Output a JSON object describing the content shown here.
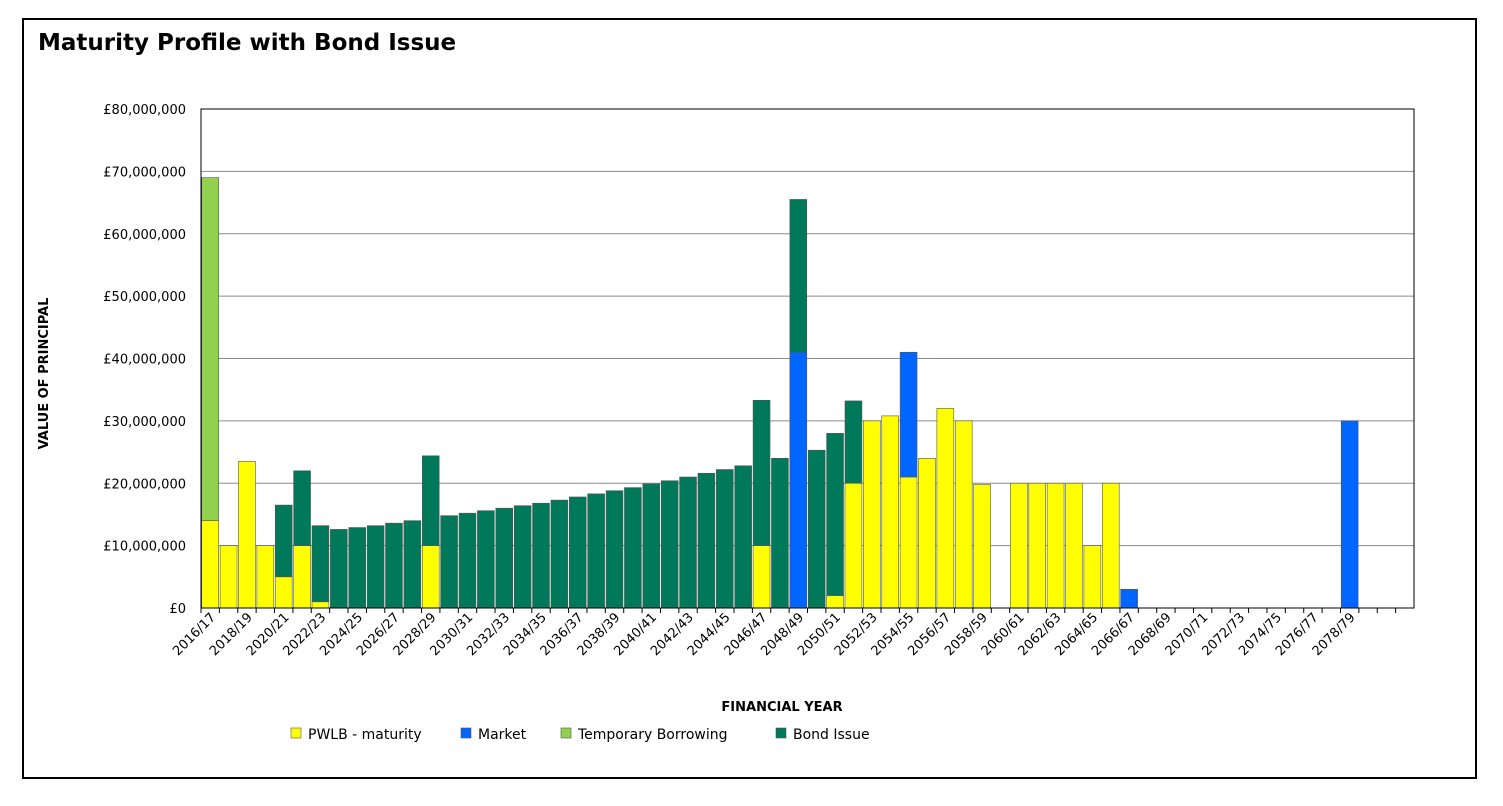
{
  "chart_data": {
    "type": "bar",
    "stacked": true,
    "title": "Maturity Profile with Bond Issue",
    "xlabel": "FINANCIAL YEAR",
    "ylabel": "VALUE OF PRINCIPAL",
    "ylim": [
      0,
      80000000
    ],
    "yticks": [
      0,
      10000000,
      20000000,
      30000000,
      40000000,
      50000000,
      60000000,
      70000000,
      80000000
    ],
    "ytick_labels": [
      "£0",
      "£10,000,000",
      "£20,000,000",
      "£30,000,000",
      "£40,000,000",
      "£50,000,000",
      "£60,000,000",
      "£70,000,000",
      "£80,000,000"
    ],
    "grid": true,
    "legend_position": "bottom",
    "categories": [
      "2016/17",
      "2017/18",
      "2018/19",
      "2019/20",
      "2020/21",
      "2021/22",
      "2022/23",
      "2023/24",
      "2024/25",
      "2025/26",
      "2026/27",
      "2027/28",
      "2028/29",
      "2029/30",
      "2030/31",
      "2031/32",
      "2032/33",
      "2033/34",
      "2034/35",
      "2035/36",
      "2036/37",
      "2037/38",
      "2038/39",
      "2039/40",
      "2040/41",
      "2041/42",
      "2042/43",
      "2043/44",
      "2044/45",
      "2045/46",
      "2046/47",
      "2047/48",
      "2048/49",
      "2049/50",
      "2050/51",
      "2051/52",
      "2052/53",
      "2053/54",
      "2054/55",
      "2055/56",
      "2056/57",
      "2057/58",
      "2058/59",
      "2059/60",
      "2060/61",
      "2061/62",
      "2062/63",
      "2063/64",
      "2064/65",
      "2065/66",
      "2066/67",
      "2067/68",
      "2068/69",
      "2069/70",
      "2070/71",
      "2071/72",
      "2072/73",
      "2073/74",
      "2074/75",
      "2075/76",
      "2076/77",
      "2077/78",
      "2078/79",
      "2079/80",
      "2080/81",
      "2081/82"
    ],
    "shown_tick_labels": [
      "2016/17",
      "2018/19",
      "2020/21",
      "2022/23",
      "2024/25",
      "2026/27",
      "2028/29",
      "2030/31",
      "2032/33",
      "2034/35",
      "2036/37",
      "2038/39",
      "2040/41",
      "2042/43",
      "2044/45",
      "2046/47",
      "2048/49",
      "2050/51",
      "2052/53",
      "2054/55",
      "2056/57",
      "2058/59",
      "2060/61",
      "2062/63",
      "2064/65",
      "2066/67",
      "2068/69",
      "2070/71",
      "2072/73",
      "2074/75",
      "2076/77",
      "2078/79"
    ],
    "series": [
      {
        "name": "PWLB - maturity",
        "color": "#FFFF00",
        "values": [
          14000000,
          10000000,
          23500000,
          10000000,
          5000000,
          10000000,
          1000000,
          0,
          0,
          0,
          0,
          0,
          10000000,
          0,
          0,
          0,
          0,
          0,
          0,
          0,
          0,
          0,
          0,
          0,
          0,
          0,
          0,
          0,
          0,
          0,
          10000000,
          0,
          0,
          0,
          2000000,
          20000000,
          30000000,
          30800000,
          21000000,
          24000000,
          32000000,
          30000000,
          19800000,
          0,
          20000000,
          20000000,
          20000000,
          20000000,
          10000000,
          20000000,
          0,
          0,
          0,
          0,
          0,
          0,
          0,
          0,
          0,
          0,
          0,
          0,
          0,
          0,
          0,
          0
        ]
      },
      {
        "name": "Market",
        "color": "#0066FF",
        "values": [
          0,
          0,
          0,
          0,
          0,
          0,
          0,
          0,
          0,
          0,
          0,
          0,
          0,
          0,
          0,
          0,
          0,
          0,
          0,
          0,
          0,
          0,
          0,
          0,
          0,
          0,
          0,
          0,
          0,
          0,
          0,
          0,
          41000000,
          0,
          0,
          0,
          0,
          0,
          20000000,
          0,
          0,
          0,
          0,
          0,
          0,
          0,
          0,
          0,
          0,
          0,
          3000000,
          0,
          0,
          0,
          0,
          0,
          0,
          0,
          0,
          0,
          0,
          0,
          30000000,
          0,
          0,
          0
        ]
      },
      {
        "name": "Temporary Borrowing",
        "color": "#92D050",
        "values": [
          55000000,
          0,
          0,
          0,
          0,
          0,
          0,
          0,
          0,
          0,
          0,
          0,
          0,
          0,
          0,
          0,
          0,
          0,
          0,
          0,
          0,
          0,
          0,
          0,
          0,
          0,
          0,
          0,
          0,
          0,
          0,
          0,
          0,
          0,
          0,
          0,
          0,
          0,
          0,
          0,
          0,
          0,
          0,
          0,
          0,
          0,
          0,
          0,
          0,
          0,
          0,
          0,
          0,
          0,
          0,
          0,
          0,
          0,
          0,
          0,
          0,
          0,
          0,
          0,
          0,
          0
        ]
      },
      {
        "name": "Bond Issue",
        "color": "#00785A",
        "values": [
          0,
          0,
          0,
          0,
          11500000,
          12000000,
          12200000,
          12600000,
          12900000,
          13200000,
          13600000,
          14000000,
          14400000,
          14800000,
          15200000,
          15600000,
          16000000,
          16400000,
          16800000,
          17300000,
          17800000,
          18300000,
          18800000,
          19300000,
          19900000,
          20400000,
          21000000,
          21600000,
          22200000,
          22800000,
          23300000,
          24000000,
          24500000,
          25300000,
          26000000,
          13200000,
          0,
          0,
          0,
          0,
          0,
          0,
          0,
          0,
          0,
          0,
          0,
          0,
          0,
          0,
          0,
          0,
          0,
          0,
          0,
          0,
          0,
          0,
          0,
          0,
          0,
          0,
          0,
          0,
          0,
          0
        ]
      }
    ]
  }
}
